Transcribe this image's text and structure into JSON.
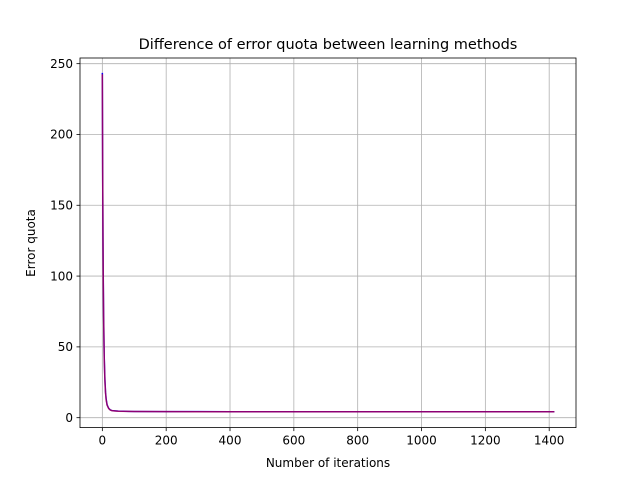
{
  "chart_data": {
    "type": "line",
    "title": "Difference of error quota between learning methods",
    "xlabel": "Number of iterations",
    "ylabel": "Error quota",
    "xlim": [
      -70,
      1484
    ],
    "ylim": [
      -7,
      254
    ],
    "x_ticks": [
      0,
      200,
      400,
      600,
      800,
      1000,
      1200,
      1400
    ],
    "y_ticks": [
      0,
      50,
      100,
      150,
      200,
      250
    ],
    "grid": true,
    "legend": "none",
    "series": [
      {
        "color": "#0000ff",
        "x": [
          0,
          1,
          2,
          3,
          4,
          5,
          6,
          8,
          10,
          12,
          15,
          18,
          20,
          25,
          30,
          40,
          50,
          100,
          200,
          300,
          400,
          600,
          800,
          1000,
          1200,
          1414
        ],
        "y": [
          243,
          175,
          128,
          95,
          72,
          56,
          42,
          27,
          18,
          13,
          9,
          7.5,
          6.5,
          5.5,
          5.0,
          4.8,
          4.6,
          4.4,
          4.3,
          4.25,
          4.2,
          4.2,
          4.2,
          4.2,
          4.2,
          4.2
        ]
      },
      {
        "color": "#ff0000",
        "x": [
          0,
          1,
          2,
          3,
          4,
          5,
          6,
          8,
          10,
          12,
          15,
          18,
          20,
          25,
          30,
          40,
          50,
          100,
          200,
          300,
          400,
          600,
          800,
          1000,
          1200,
          1414
        ],
        "y": [
          242,
          174,
          127,
          94,
          71,
          55,
          41,
          26,
          17.5,
          12.5,
          8.8,
          7.3,
          6.4,
          5.4,
          4.95,
          4.75,
          4.55,
          4.35,
          4.25,
          4.2,
          4.15,
          4.15,
          4.15,
          4.15,
          4.15,
          4.15
        ]
      }
    ]
  }
}
